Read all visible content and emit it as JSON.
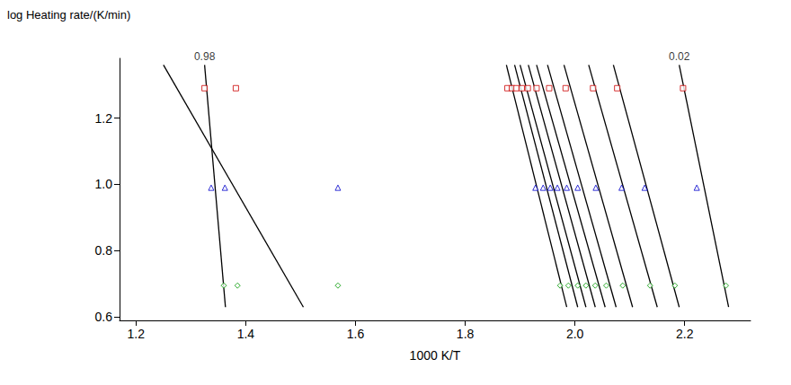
{
  "chart_data": {
    "type": "scatter",
    "x_label": "1000 K/T",
    "y_label": "log Heating rate/(K/min)",
    "xlim": [
      1.17,
      2.32
    ],
    "xticks": [
      1.2,
      1.4,
      1.6,
      1.8,
      {
        "value": 2.0,
        "label": "2.0"
      },
      2.2
    ],
    "ylim": [
      0.59,
      1.38
    ],
    "yticks": [
      0.6,
      0.8,
      {
        "value": 1.0,
        "label": "1.0"
      },
      1.2
    ],
    "grid": false,
    "series": [
      {
        "type": "scatter",
        "color": "#cc0000",
        "marker": "square",
        "x": [
          1.325,
          1.382,
          1.877,
          1.885,
          1.893,
          1.903,
          1.914,
          1.93,
          1.953,
          1.983,
          2.033,
          2.077,
          2.197
        ],
        "values": [
          1.29,
          1.29,
          1.29,
          1.29,
          1.29,
          1.29,
          1.29,
          1.29,
          1.29,
          1.29,
          1.29,
          1.29,
          1.29
        ]
      },
      {
        "type": "scatter",
        "color": "#0000cc",
        "marker": "triangle",
        "x": [
          1.337,
          1.362,
          1.568,
          1.928,
          1.942,
          1.955,
          1.968,
          1.985,
          2.005,
          2.038,
          2.085,
          2.127,
          2.222
        ],
        "values": [
          0.99,
          0.99,
          0.99,
          0.99,
          0.99,
          0.99,
          0.99,
          0.99,
          0.99,
          0.99,
          0.99,
          0.99,
          0.99
        ]
      },
      {
        "type": "scatter",
        "color": "#009900",
        "marker": "diamond",
        "x": [
          1.36,
          1.385,
          1.568,
          1.973,
          1.988,
          2.005,
          2.02,
          2.037,
          2.057,
          2.087,
          2.137,
          2.182,
          2.275
        ],
        "values": [
          0.695,
          0.695,
          0.695,
          0.695,
          0.695,
          0.695,
          0.695,
          0.695,
          0.695,
          0.695,
          0.695,
          0.695,
          0.695
        ]
      },
      {
        "type": "line",
        "color": "#000000",
        "line_style": "solid",
        "x": [
          1.325,
          1.363
        ],
        "values": [
          1.36,
          0.63
        ]
      },
      {
        "type": "line",
        "color": "#000000",
        "line_style": "solid",
        "x": [
          1.25,
          1.505
        ],
        "values": [
          1.36,
          0.63
        ]
      },
      {
        "type": "line",
        "color": "#000000",
        "line_style": "solid",
        "x": [
          1.875,
          1.985
        ],
        "values": [
          1.36,
          0.63
        ]
      },
      {
        "type": "line",
        "color": "#000000",
        "line_style": "solid",
        "x": [
          1.89,
          2.005
        ],
        "values": [
          1.36,
          0.63
        ]
      },
      {
        "type": "line",
        "color": "#000000",
        "line_style": "solid",
        "x": [
          1.9,
          2.02
        ],
        "values": [
          1.36,
          0.63
        ]
      },
      {
        "type": "line",
        "color": "#000000",
        "line_style": "solid",
        "x": [
          1.915,
          2.037
        ],
        "values": [
          1.36,
          0.63
        ]
      },
      {
        "type": "line",
        "color": "#000000",
        "line_style": "solid",
        "x": [
          1.93,
          2.055
        ],
        "values": [
          1.36,
          0.63
        ]
      },
      {
        "type": "line",
        "color": "#000000",
        "line_style": "solid",
        "x": [
          1.95,
          2.075
        ],
        "values": [
          1.36,
          0.63
        ]
      },
      {
        "type": "line",
        "color": "#000000",
        "line_style": "solid",
        "x": [
          1.98,
          2.105
        ],
        "values": [
          1.36,
          0.63
        ]
      },
      {
        "type": "line",
        "color": "#000000",
        "line_style": "solid",
        "x": [
          2.025,
          2.15
        ],
        "values": [
          1.36,
          0.63
        ]
      },
      {
        "type": "line",
        "color": "#000000",
        "line_style": "solid",
        "x": [
          2.07,
          2.19
        ],
        "values": [
          1.36,
          0.63
        ]
      },
      {
        "type": "line",
        "color": "#000000",
        "line_style": "solid",
        "x": [
          2.19,
          2.28
        ],
        "values": [
          1.36,
          0.63
        ]
      }
    ],
    "annotations": [
      {
        "text": "0.98",
        "x": 1.325,
        "y": 1.365
      },
      {
        "text": "0.02",
        "x": 2.19,
        "y": 1.365
      }
    ]
  }
}
